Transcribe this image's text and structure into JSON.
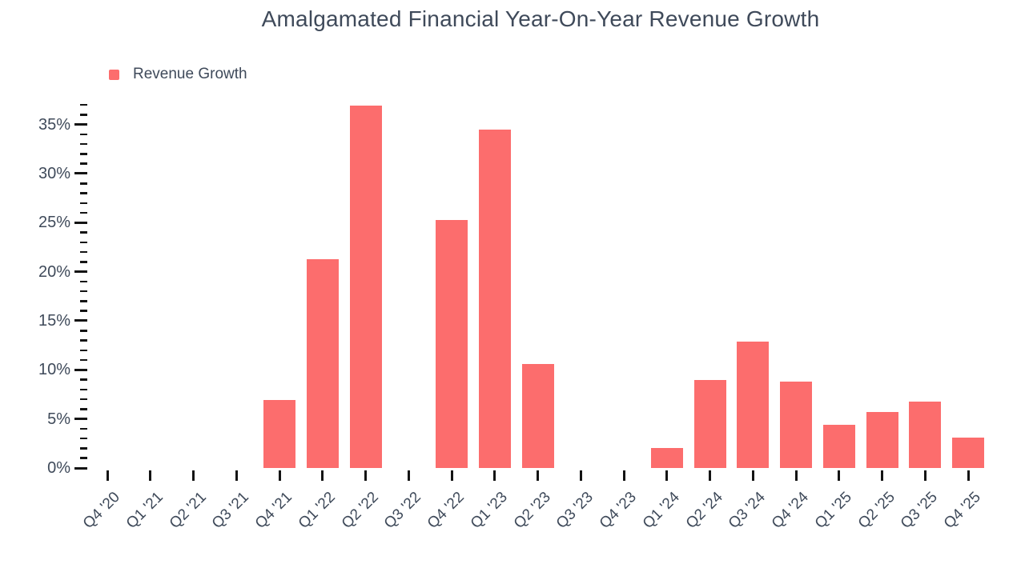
{
  "chart_data": {
    "type": "bar",
    "title": "Amalgamated Financial Year-On-Year Revenue Growth",
    "categories": [
      "Q4 '20",
      "Q1 '21",
      "Q2 '21",
      "Q3 '21",
      "Q4 '21",
      "Q1 '22",
      "Q2 '22",
      "Q3 '22",
      "Q4 '22",
      "Q1 '23",
      "Q2 '23",
      "Q3 '23",
      "Q4 '23",
      "Q1 '24",
      "Q2 '24",
      "Q3 '24",
      "Q4 '24",
      "Q1 '25",
      "Q2 '25",
      "Q3 '25",
      "Q4 '25"
    ],
    "series": [
      {
        "name": "Revenue Growth",
        "color": "#fc6d6d",
        "values": [
          null,
          null,
          null,
          null,
          6.9,
          21.3,
          36.9,
          null,
          25.3,
          34.5,
          10.6,
          null,
          null,
          2.0,
          9.0,
          12.9,
          8.8,
          4.4,
          5.7,
          6.8,
          3.1
        ]
      }
    ],
    "xlabel": "",
    "ylabel": "",
    "ylim": [
      0,
      37
    ],
    "y_major_step": 5,
    "y_minor_step": 1,
    "y_max_labeled": 35,
    "y_tick_suffix": "%",
    "grid": false,
    "legend_position": "top-left",
    "colors": {
      "bar": "#fc6d6d",
      "text": "#3f4a5a",
      "tick": "#141414",
      "background": "#ffffff"
    }
  }
}
